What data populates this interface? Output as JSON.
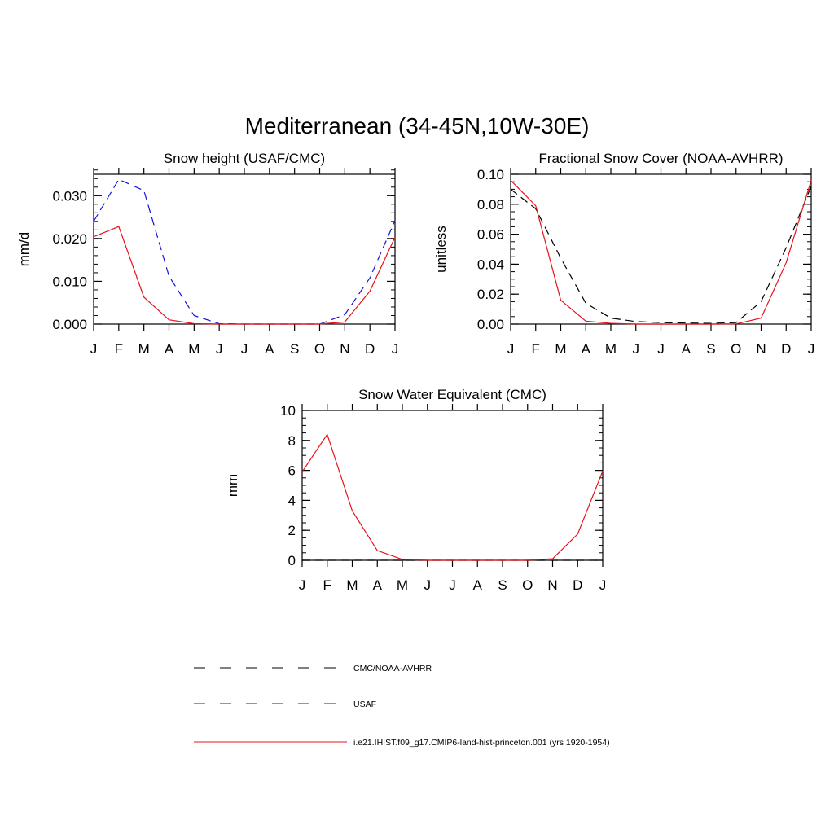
{
  "figure": {
    "title": "Mediterranean (34-45N,10W-30E)"
  },
  "months": [
    "J",
    "F",
    "M",
    "A",
    "M",
    "J",
    "J",
    "A",
    "S",
    "O",
    "N",
    "D",
    "J"
  ],
  "colors": {
    "model": "#e8111b",
    "usaf": "#1515d8",
    "cmc_avhrr": "#000000",
    "axis": "#000000"
  },
  "legend": {
    "entries": [
      {
        "label": "CMC/NOAA-AVHRR",
        "color": "#000000",
        "style": "dashed"
      },
      {
        "label": "USAF",
        "color": "#1515d8",
        "style": "dashed"
      },
      {
        "label": "i.e21.IHIST.f09_g17.CMIP6-land-hist-princeton.001 (yrs 1920-1954)",
        "color": "#e8111b",
        "style": "solid"
      }
    ]
  },
  "chart_data": [
    {
      "type": "line",
      "title": "Snow height (USAF/CMC)",
      "xlabel": "",
      "ylabel": "mm/d",
      "ylim": [
        0,
        0.035
      ],
      "yticks": [
        0,
        0.01,
        0.02,
        0.03
      ],
      "ytick_labels": [
        "0.000",
        "0.010",
        "0.020",
        "0.030"
      ],
      "yminor_step": 0.002,
      "x": [
        "J",
        "F",
        "M",
        "A",
        "M",
        "J",
        "J",
        "A",
        "S",
        "O",
        "N",
        "D",
        "J"
      ],
      "series": [
        {
          "name": "USAF",
          "color": "#1515d8",
          "style": "dashed",
          "values": [
            0.024,
            0.0338,
            0.0312,
            0.0112,
            0.002,
            0.0001,
            0,
            0,
            0,
            0,
            0.0022,
            0.0108,
            0.0242
          ]
        },
        {
          "name": "i.e21.IHIST.f09_g17.CMIP6-land-hist-princeton.001 (yrs 1920-1954)",
          "color": "#e8111b",
          "style": "solid",
          "values": [
            0.0204,
            0.0228,
            0.0063,
            0.001,
            0.0001,
            0,
            0,
            0,
            0,
            0,
            0.0005,
            0.0077,
            0.0203
          ]
        }
      ]
    },
    {
      "type": "line",
      "title": "Fractional Snow Cover (NOAA-AVHRR)",
      "xlabel": "",
      "ylabel": "unitless",
      "ylim": [
        0,
        0.1
      ],
      "yticks": [
        0,
        0.02,
        0.04,
        0.06,
        0.08,
        0.1
      ],
      "ytick_labels": [
        "0.00",
        "0.02",
        "0.04",
        "0.06",
        "0.08",
        "0.10"
      ],
      "yminor_step": 0.005,
      "x": [
        "J",
        "F",
        "M",
        "A",
        "M",
        "J",
        "J",
        "A",
        "S",
        "O",
        "N",
        "D",
        "J"
      ],
      "series": [
        {
          "name": "CMC/NOAA-AVHRR",
          "color": "#000000",
          "style": "dashed",
          "values": [
            0.09,
            0.077,
            0.044,
            0.014,
            0.004,
            0.0017,
            0.001,
            0.0007,
            0.0005,
            0.001,
            0.015,
            0.051,
            0.092
          ]
        },
        {
          "name": "i.e21.IHIST.f09_g17.CMIP6-land-hist-princeton.001 (yrs 1920-1954)",
          "color": "#e8111b",
          "style": "solid",
          "values": [
            0.096,
            0.079,
            0.016,
            0.002,
            0.0005,
            0,
            0,
            0,
            0,
            0.0001,
            0.004,
            0.041,
            0.096
          ]
        }
      ]
    },
    {
      "type": "line",
      "title": "Snow Water Equivalent (CMC)",
      "xlabel": "",
      "ylabel": "mm",
      "ylim": [
        0,
        10
      ],
      "yticks": [
        0,
        2,
        4,
        6,
        8,
        10
      ],
      "ytick_labels": [
        "0",
        "2",
        "4",
        "6",
        "8",
        "10"
      ],
      "yminor_step": 0.5,
      "x": [
        "J",
        "F",
        "M",
        "A",
        "M",
        "J",
        "J",
        "A",
        "S",
        "O",
        "N",
        "D",
        "J"
      ],
      "series": [
        {
          "name": "CMC/NOAA-AVHRR",
          "color": "#000000",
          "style": "dashed",
          "values": [
            0,
            0,
            0,
            0,
            0,
            0,
            0,
            0,
            0,
            0,
            0,
            0,
            0
          ]
        },
        {
          "name": "i.e21.IHIST.f09_g17.CMIP6-land-hist-princeton.001 (yrs 1920-1954)",
          "color": "#e8111b",
          "style": "solid",
          "values": [
            5.9,
            8.4,
            3.3,
            0.65,
            0.06,
            0,
            0,
            0,
            0,
            0,
            0.1,
            1.75,
            5.95
          ]
        }
      ]
    }
  ]
}
